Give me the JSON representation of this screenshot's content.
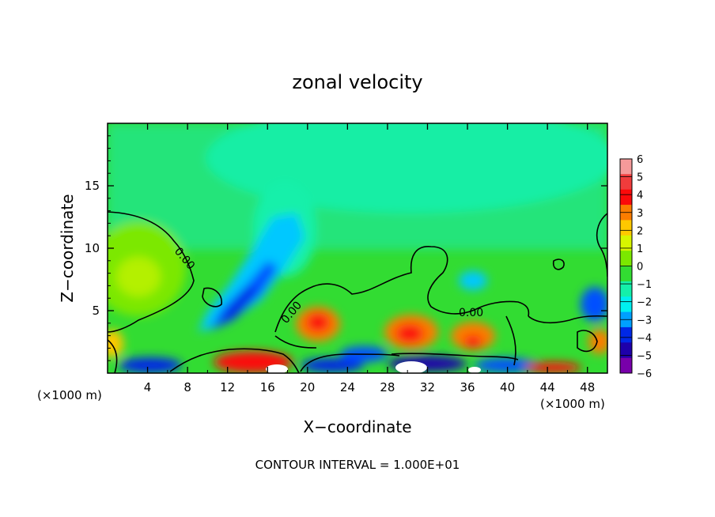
{
  "chart_data": {
    "type": "heatmap",
    "title": "zonal velocity",
    "xlabel": "X−coordinate",
    "ylabel": "Z−coordinate",
    "x_unit_left": "(×1000 m)",
    "x_unit_right": "(×1000 m)",
    "xlim": [
      0,
      50
    ],
    "ylim": [
      0,
      20
    ],
    "x_ticks": [
      4,
      8,
      12,
      16,
      20,
      24,
      28,
      32,
      36,
      40,
      44,
      48
    ],
    "x_tick_labels": [
      "4",
      "8",
      "12",
      "16",
      "20",
      "24",
      "28",
      "32",
      "36",
      "40",
      "44",
      "48"
    ],
    "y_ticks": [
      5,
      10,
      15
    ],
    "y_tick_labels": [
      "5",
      "10",
      "15"
    ],
    "contour_labels": [
      "0.00",
      "0.00",
      "0.00"
    ],
    "colorbar": {
      "levels": [
        6,
        5,
        4,
        3,
        2,
        1,
        0,
        -1,
        -2,
        -3,
        -4,
        -5,
        -6
      ],
      "tick_labels": [
        "6",
        "5",
        "4",
        "3",
        "2",
        "1",
        "0",
        "−1",
        "−2",
        "−3",
        "−4",
        "−5",
        "−6"
      ],
      "colors": [
        "#f59a9a",
        "#f03c3c",
        "#fb0a0a",
        "#fb7d00",
        "#ffc800",
        "#d7f500",
        "#7be800",
        "#32dc32",
        "#14f0aa",
        "#00f0f0",
        "#00a0ff",
        "#0028e6",
        "#1e00aa",
        "#7800aa"
      ]
    },
    "footer": "CONTOUR INTERVAL = 1.000E+01"
  }
}
